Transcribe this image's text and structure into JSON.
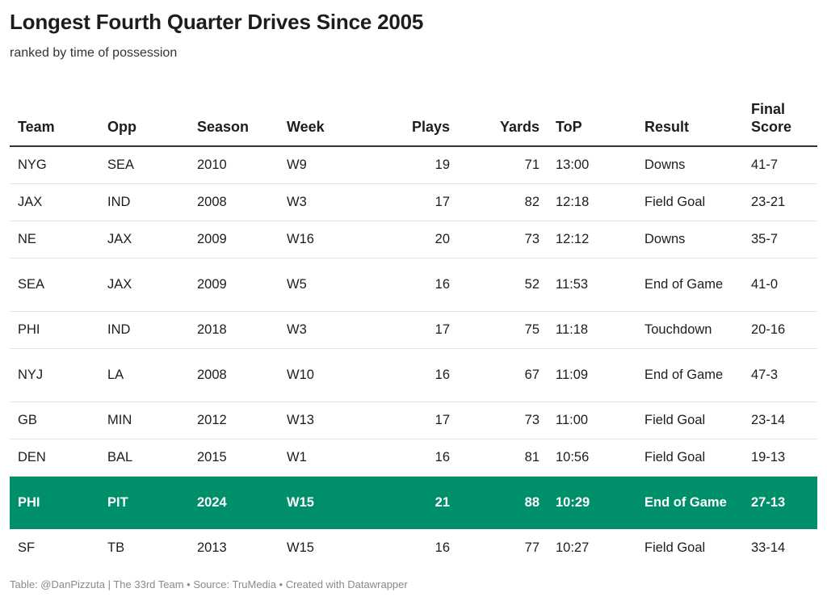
{
  "title": "Longest Fourth Quarter Drives Since 2005",
  "subtitle": "ranked by time of possession",
  "footer": "Table: @DanPizzuta | The 33rd Team • Source: TruMedia • Created with Datawrapper",
  "highlight_color": "#008f6b",
  "chart_data": {
    "type": "table",
    "columns": [
      "Team",
      "Opp",
      "Season",
      "Week",
      "Plays",
      "Yards",
      "ToP",
      "Result",
      "Final Score"
    ],
    "rows": [
      [
        "NYG",
        "SEA",
        "2010",
        "W9",
        "19",
        "71",
        "13:00",
        "Downs",
        "41-7"
      ],
      [
        "JAX",
        "IND",
        "2008",
        "W3",
        "17",
        "82",
        "12:18",
        "Field Goal",
        "23-21"
      ],
      [
        "NE",
        "JAX",
        "2009",
        "W16",
        "20",
        "73",
        "12:12",
        "Downs",
        "35-7"
      ],
      [
        "SEA",
        "JAX",
        "2009",
        "W5",
        "16",
        "52",
        "11:53",
        "End of Game",
        "41-0"
      ],
      [
        "PHI",
        "IND",
        "2018",
        "W3",
        "17",
        "75",
        "11:18",
        "Touchdown",
        "20-16"
      ],
      [
        "NYJ",
        "LA",
        "2008",
        "W10",
        "16",
        "67",
        "11:09",
        "End of Game",
        "47-3"
      ],
      [
        "GB",
        "MIN",
        "2012",
        "W13",
        "17",
        "73",
        "11:00",
        "Field Goal",
        "23-14"
      ],
      [
        "DEN",
        "BAL",
        "2015",
        "W1",
        "16",
        "81",
        "10:56",
        "Field Goal",
        "19-13"
      ],
      [
        "PHI",
        "PIT",
        "2024",
        "W15",
        "21",
        "88",
        "10:29",
        "End of Game",
        "27-13"
      ],
      [
        "SF",
        "TB",
        "2013",
        "W15",
        "16",
        "77",
        "10:27",
        "Field Goal",
        "33-14"
      ]
    ],
    "highlighted_row": 8
  }
}
